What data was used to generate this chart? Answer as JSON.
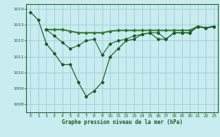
{
  "title": "Graphe pression niveau de la mer (hPa)",
  "bg_color": "#c8ecf0",
  "grid_color": "#9ecad4",
  "line_color_dark": "#1a5c20",
  "line_color_mid": "#2e7d32",
  "xlim": [
    -0.5,
    23.5
  ],
  "ylim": [
    1007.5,
    1014.3
  ],
  "xticks": [
    0,
    1,
    2,
    3,
    4,
    5,
    6,
    7,
    8,
    9,
    10,
    11,
    12,
    13,
    14,
    15,
    16,
    17,
    18,
    19,
    20,
    21,
    22,
    23
  ],
  "yticks": [
    1008,
    1009,
    1010,
    1011,
    1012,
    1013,
    1014
  ],
  "series1_x": [
    0,
    1,
    2,
    3,
    4,
    5,
    6,
    7,
    8,
    9,
    10,
    11,
    12,
    13,
    14,
    15,
    16,
    17,
    18,
    19,
    20,
    21,
    22,
    23
  ],
  "series1_y": [
    1013.8,
    1013.3,
    1011.8,
    1011.2,
    1010.5,
    1010.5,
    1009.4,
    1008.5,
    1008.85,
    1009.4,
    1011.0,
    1011.5,
    1012.0,
    1012.1,
    1012.4,
    1012.5,
    1012.1,
    1012.1,
    1012.5,
    1012.5,
    1012.5,
    1012.9,
    1012.8,
    1012.9
  ],
  "series2_x": [
    2,
    3,
    4,
    5,
    6,
    7,
    8,
    9,
    10,
    11,
    12,
    13,
    14,
    15,
    16,
    17,
    18,
    19,
    20,
    21,
    22,
    23
  ],
  "series2_y": [
    1012.7,
    1012.7,
    1012.7,
    1012.6,
    1012.5,
    1012.5,
    1012.5,
    1012.5,
    1012.6,
    1012.65,
    1012.65,
    1012.65,
    1012.65,
    1012.65,
    1012.65,
    1012.65,
    1012.65,
    1012.65,
    1012.65,
    1012.9,
    1012.8,
    1012.9
  ],
  "series3_x": [
    2,
    3,
    4,
    5,
    6,
    7,
    8,
    9,
    10,
    11,
    12,
    13,
    14,
    15,
    16,
    17,
    18,
    19,
    20,
    21,
    22,
    23
  ],
  "series3_y": [
    1012.7,
    1012.3,
    1011.9,
    1011.5,
    1011.7,
    1012.0,
    1012.1,
    1011.1,
    1011.8,
    1012.0,
    1012.1,
    1012.3,
    1012.4,
    1012.5,
    1012.5,
    1012.1,
    1012.5,
    1012.5,
    1012.5,
    1012.9,
    1012.8,
    1012.9
  ]
}
